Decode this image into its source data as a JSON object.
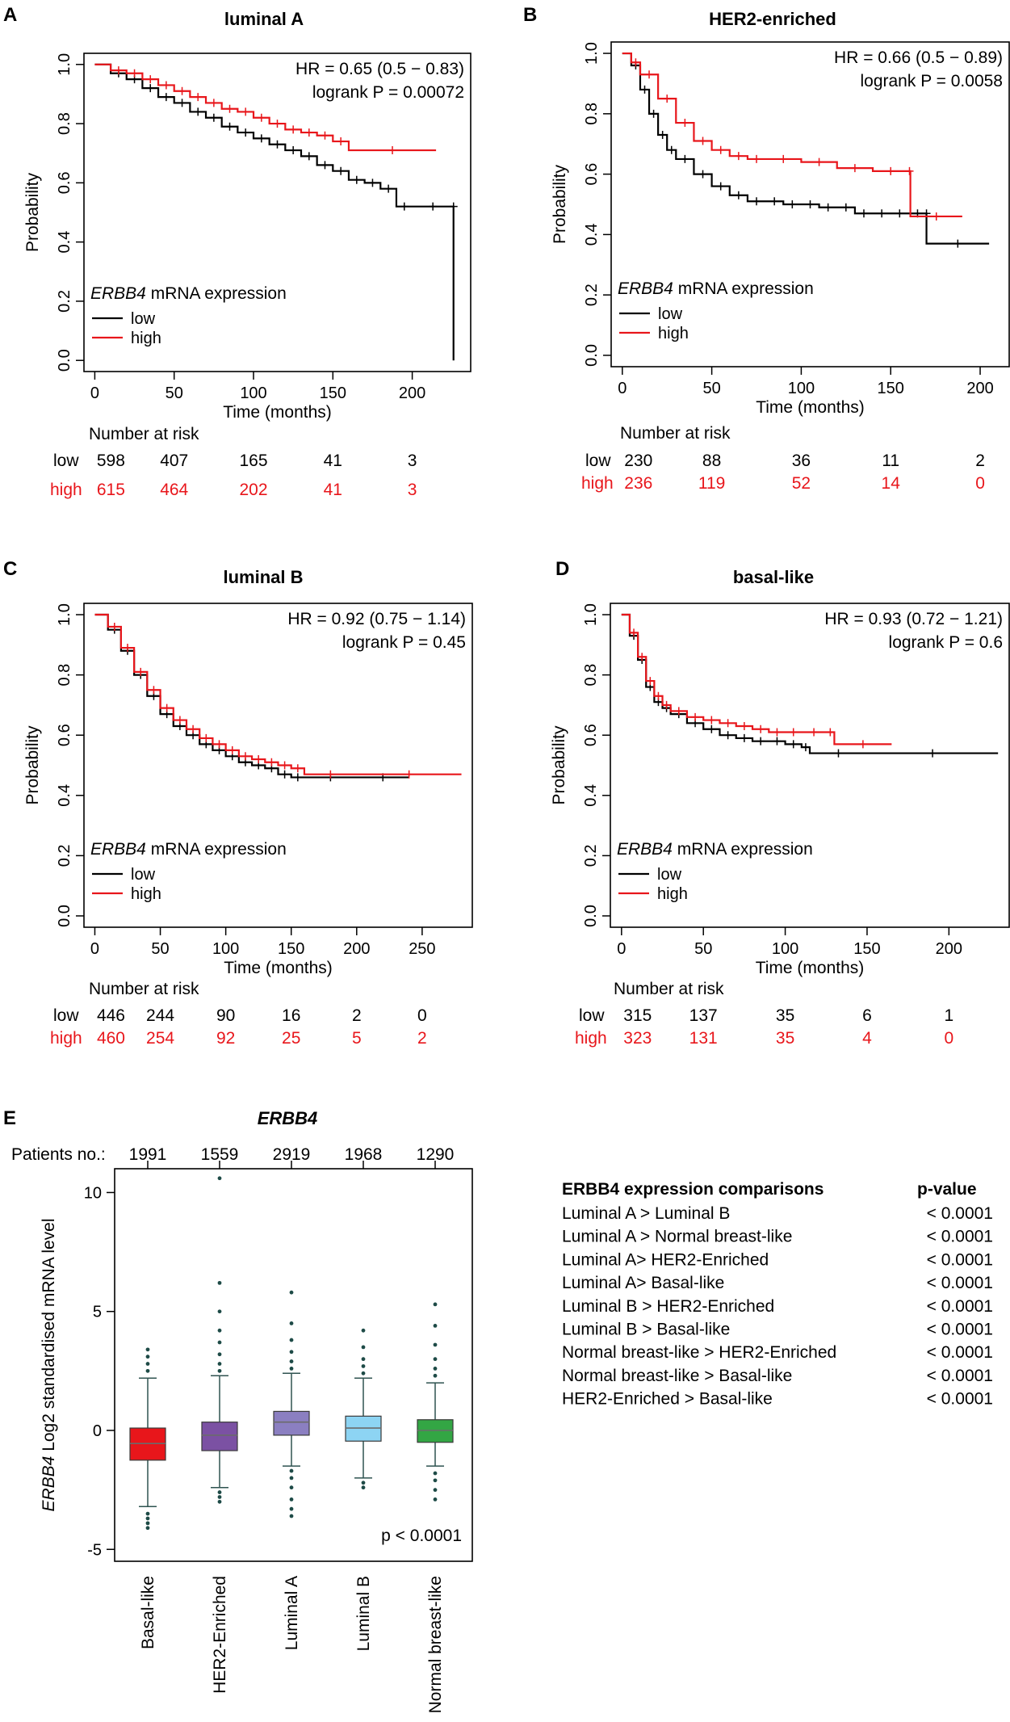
{
  "colors": {
    "low": "#000000",
    "high": "#e8161b",
    "box_fills": [
      "#e8161b",
      "#7b51a3",
      "#8b7fc1",
      "#8dd4f3",
      "#33a644"
    ],
    "whisker": "#2f5350",
    "outlier": "#1e4b47"
  },
  "common": {
    "ylabel": "Probability",
    "xlabel": "Time (months)",
    "legend_gene": "ERBB4",
    "legend_suffix": " mRNA expression",
    "legend_low": "low",
    "legend_high": "high",
    "risk_title": "Number at risk",
    "risk_low_label": "low",
    "risk_high_label": "high"
  },
  "chart_data": [
    {
      "type": "line",
      "panel": "A",
      "title": "luminal A",
      "hr_text": "HR = 0.65 (0.5 − 0.83)",
      "p_text": "logrank P = 0.00072",
      "xlim": [
        0,
        230
      ],
      "ylim": [
        0,
        1
      ],
      "xticks": [
        0,
        50,
        100,
        150,
        200
      ],
      "yticks": [
        0.0,
        0.2,
        0.4,
        0.6,
        0.8,
        1.0
      ],
      "ytick_labels": [
        "0.0",
        "0.2",
        "0.4",
        "0.6",
        "0.8",
        "1.0"
      ],
      "series": [
        {
          "name": "low",
          "x": [
            0,
            10,
            20,
            30,
            40,
            50,
            60,
            70,
            80,
            90,
            100,
            110,
            120,
            130,
            140,
            150,
            160,
            170,
            180,
            190,
            200,
            226,
            226
          ],
          "y": [
            1.0,
            0.97,
            0.95,
            0.92,
            0.89,
            0.87,
            0.84,
            0.82,
            0.79,
            0.77,
            0.75,
            0.73,
            0.71,
            0.69,
            0.66,
            0.64,
            0.61,
            0.6,
            0.58,
            0.52,
            0.52,
            0.52,
            0.0
          ]
        },
        {
          "name": "high",
          "x": [
            0,
            10,
            20,
            30,
            40,
            50,
            60,
            70,
            80,
            90,
            100,
            110,
            120,
            130,
            140,
            150,
            160,
            215
          ],
          "y": [
            1.0,
            0.98,
            0.97,
            0.95,
            0.93,
            0.91,
            0.89,
            0.87,
            0.85,
            0.84,
            0.82,
            0.8,
            0.78,
            0.77,
            0.76,
            0.74,
            0.71,
            0.71
          ]
        }
      ],
      "risk_times": [
        0,
        50,
        100,
        150,
        200
      ],
      "risk_low": [
        598,
        407,
        165,
        41,
        3
      ],
      "risk_high": [
        615,
        464,
        202,
        41,
        3
      ]
    },
    {
      "type": "line",
      "panel": "B",
      "title": "HER2-enriched",
      "hr_text": "HR = 0.66 (0.5 − 0.89)",
      "p_text": "logrank P = 0.0058",
      "xlim": [
        0,
        210
      ],
      "ylim": [
        0,
        1
      ],
      "xticks": [
        0,
        50,
        100,
        150,
        200
      ],
      "yticks": [
        0.0,
        0.2,
        0.4,
        0.6,
        0.8,
        1.0
      ],
      "ytick_labels": [
        "0.0",
        "0.2",
        "0.4",
        "0.6",
        "0.8",
        "1.0"
      ],
      "series": [
        {
          "name": "low",
          "x": [
            0,
            5,
            10,
            15,
            20,
            25,
            30,
            40,
            50,
            60,
            70,
            80,
            90,
            100,
            110,
            120,
            130,
            140,
            150,
            160,
            170,
            170,
            205
          ],
          "y": [
            1.0,
            0.96,
            0.88,
            0.8,
            0.73,
            0.68,
            0.65,
            0.6,
            0.56,
            0.53,
            0.51,
            0.51,
            0.5,
            0.5,
            0.49,
            0.49,
            0.47,
            0.47,
            0.47,
            0.47,
            0.47,
            0.37,
            0.37
          ]
        },
        {
          "name": "high",
          "x": [
            0,
            5,
            10,
            20,
            30,
            40,
            50,
            60,
            70,
            80,
            100,
            120,
            140,
            160,
            161,
            190
          ],
          "y": [
            1.0,
            0.97,
            0.93,
            0.85,
            0.77,
            0.71,
            0.68,
            0.66,
            0.65,
            0.65,
            0.64,
            0.62,
            0.61,
            0.61,
            0.46,
            0.46
          ]
        }
      ],
      "risk_times": [
        0,
        50,
        100,
        150,
        200
      ],
      "risk_low": [
        230,
        88,
        36,
        11,
        2
      ],
      "risk_high": [
        236,
        119,
        52,
        14,
        0
      ]
    },
    {
      "type": "line",
      "panel": "C",
      "title": "luminal B",
      "hr_text": "HR = 0.92 (0.75 − 1.14)",
      "p_text": "logrank P = 0.45",
      "xlim": [
        0,
        280
      ],
      "ylim": [
        0,
        1
      ],
      "xticks": [
        0,
        50,
        100,
        150,
        200,
        250
      ],
      "yticks": [
        0.0,
        0.2,
        0.4,
        0.6,
        0.8,
        1.0
      ],
      "ytick_labels": [
        "0.0",
        "0.2",
        "0.4",
        "0.6",
        "0.8",
        "1.0"
      ],
      "series": [
        {
          "name": "low",
          "x": [
            0,
            10,
            20,
            30,
            40,
            50,
            60,
            70,
            80,
            90,
            100,
            110,
            120,
            130,
            140,
            150,
            160,
            200,
            240
          ],
          "y": [
            1.0,
            0.95,
            0.88,
            0.8,
            0.73,
            0.67,
            0.63,
            0.6,
            0.57,
            0.55,
            0.53,
            0.51,
            0.5,
            0.49,
            0.47,
            0.46,
            0.46,
            0.46,
            0.46
          ]
        },
        {
          "name": "high",
          "x": [
            0,
            10,
            20,
            30,
            40,
            50,
            60,
            70,
            80,
            90,
            100,
            110,
            120,
            130,
            140,
            150,
            160,
            200,
            280
          ],
          "y": [
            1.0,
            0.96,
            0.89,
            0.81,
            0.75,
            0.69,
            0.65,
            0.62,
            0.59,
            0.57,
            0.55,
            0.53,
            0.52,
            0.51,
            0.5,
            0.49,
            0.47,
            0.47,
            0.47
          ]
        }
      ],
      "risk_times": [
        0,
        50,
        100,
        150,
        200,
        250
      ],
      "risk_low": [
        446,
        244,
        90,
        16,
        2,
        0
      ],
      "risk_high": [
        460,
        254,
        92,
        25,
        5,
        2
      ]
    },
    {
      "type": "line",
      "panel": "D",
      "title": "basal-like",
      "hr_text": "HR = 0.93 (0.72 − 1.21)",
      "p_text": "logrank P = 0.6",
      "xlim": [
        0,
        230
      ],
      "ylim": [
        0,
        1
      ],
      "xticks": [
        0,
        50,
        100,
        150,
        200
      ],
      "yticks": [
        0.0,
        0.2,
        0.4,
        0.6,
        0.8,
        1.0
      ],
      "ytick_labels": [
        "0.0",
        "0.2",
        "0.4",
        "0.6",
        "0.8",
        "1.0"
      ],
      "series": [
        {
          "name": "low",
          "x": [
            0,
            5,
            10,
            15,
            20,
            25,
            30,
            40,
            50,
            60,
            70,
            80,
            90,
            100,
            110,
            115,
            150,
            230
          ],
          "y": [
            1.0,
            0.93,
            0.85,
            0.76,
            0.71,
            0.69,
            0.67,
            0.64,
            0.62,
            0.6,
            0.59,
            0.58,
            0.58,
            0.57,
            0.56,
            0.54,
            0.54,
            0.54
          ]
        },
        {
          "name": "high",
          "x": [
            0,
            5,
            10,
            15,
            20,
            25,
            30,
            40,
            50,
            60,
            70,
            80,
            90,
            100,
            110,
            125,
            130,
            165
          ],
          "y": [
            1.0,
            0.94,
            0.86,
            0.78,
            0.73,
            0.7,
            0.68,
            0.66,
            0.65,
            0.64,
            0.63,
            0.62,
            0.61,
            0.61,
            0.61,
            0.61,
            0.57,
            0.57
          ]
        }
      ],
      "risk_times": [
        0,
        50,
        100,
        150,
        200
      ],
      "risk_low": [
        315,
        137,
        35,
        6,
        1
      ],
      "risk_high": [
        323,
        131,
        35,
        4,
        0
      ]
    },
    {
      "type": "box",
      "panel": "E",
      "title": "ERBB4",
      "ylabel_gene": "ERBB4",
      "ylabel_rest": " Log2 standardised mRNA level",
      "patients_label": "Patients no.:",
      "p_text": "p < 0.0001",
      "ylim": [
        -5.5,
        11
      ],
      "yticks": [
        -5,
        0,
        5,
        10
      ],
      "ytick_labels": [
        "-5",
        "0",
        "5",
        "10"
      ],
      "categories": [
        "Basal-like",
        "HER2-Enriched",
        "Luminal A",
        "Luminal B",
        "Normal breast-like"
      ],
      "patients": [
        1991,
        1559,
        2919,
        1968,
        1290
      ],
      "boxes": [
        {
          "q1": -1.25,
          "median": -0.55,
          "q3": 0.1,
          "lower_whisker": -3.2,
          "upper_whisker": 2.2,
          "outliers": [
            -3.5,
            -3.7,
            -3.9,
            -4.1,
            2.5,
            2.8,
            3.1,
            3.4
          ]
        },
        {
          "q1": -0.85,
          "median": -0.2,
          "q3": 0.35,
          "lower_whisker": -2.4,
          "upper_whisker": 2.3,
          "outliers": [
            -2.6,
            -2.8,
            -3.0,
            2.5,
            2.8,
            3.2,
            3.7,
            4.2,
            5.0,
            6.2,
            10.6
          ]
        },
        {
          "q1": -0.2,
          "median": 0.35,
          "q3": 0.8,
          "lower_whisker": -1.5,
          "upper_whisker": 2.4,
          "outliers": [
            -1.7,
            -2.0,
            -2.4,
            -2.9,
            -3.3,
            -3.6,
            2.6,
            2.9,
            3.3,
            3.8,
            4.5,
            5.8
          ]
        },
        {
          "q1": -0.45,
          "median": 0.1,
          "q3": 0.6,
          "lower_whisker": -2.0,
          "upper_whisker": 2.2,
          "outliers": [
            -2.2,
            -2.4,
            2.4,
            2.7,
            3.0,
            3.5,
            4.2
          ]
        },
        {
          "q1": -0.5,
          "median": 0.0,
          "q3": 0.45,
          "lower_whisker": -1.5,
          "upper_whisker": 2.0,
          "outliers": [
            -1.8,
            -2.1,
            -2.5,
            -2.9,
            2.3,
            2.6,
            3.0,
            3.6,
            4.4,
            5.3
          ]
        }
      ]
    }
  ],
  "comparisons": {
    "header_left": "ERBB4 expression comparisons",
    "header_right": "p-value",
    "rows": [
      {
        "comparison": "Luminal A > Luminal B",
        "p": "< 0.0001"
      },
      {
        "comparison": "Luminal A > Normal breast-like",
        "p": "< 0.0001"
      },
      {
        "comparison": "Luminal A> HER2-Enriched",
        "p": "< 0.0001"
      },
      {
        "comparison": "Luminal A> Basal-like",
        "p": "< 0.0001"
      },
      {
        "comparison": "Luminal B > HER2-Enriched",
        "p": "< 0.0001"
      },
      {
        "comparison": "Luminal B > Basal-like",
        "p": "< 0.0001"
      },
      {
        "comparison": "Normal breast-like > HER2-Enriched",
        "p": "< 0.0001"
      },
      {
        "comparison": "Normal breast-like > Basal-like",
        "p": "< 0.0001"
      },
      {
        "comparison": "HER2-Enriched > Basal-like",
        "p": "< 0.0001"
      }
    ]
  }
}
